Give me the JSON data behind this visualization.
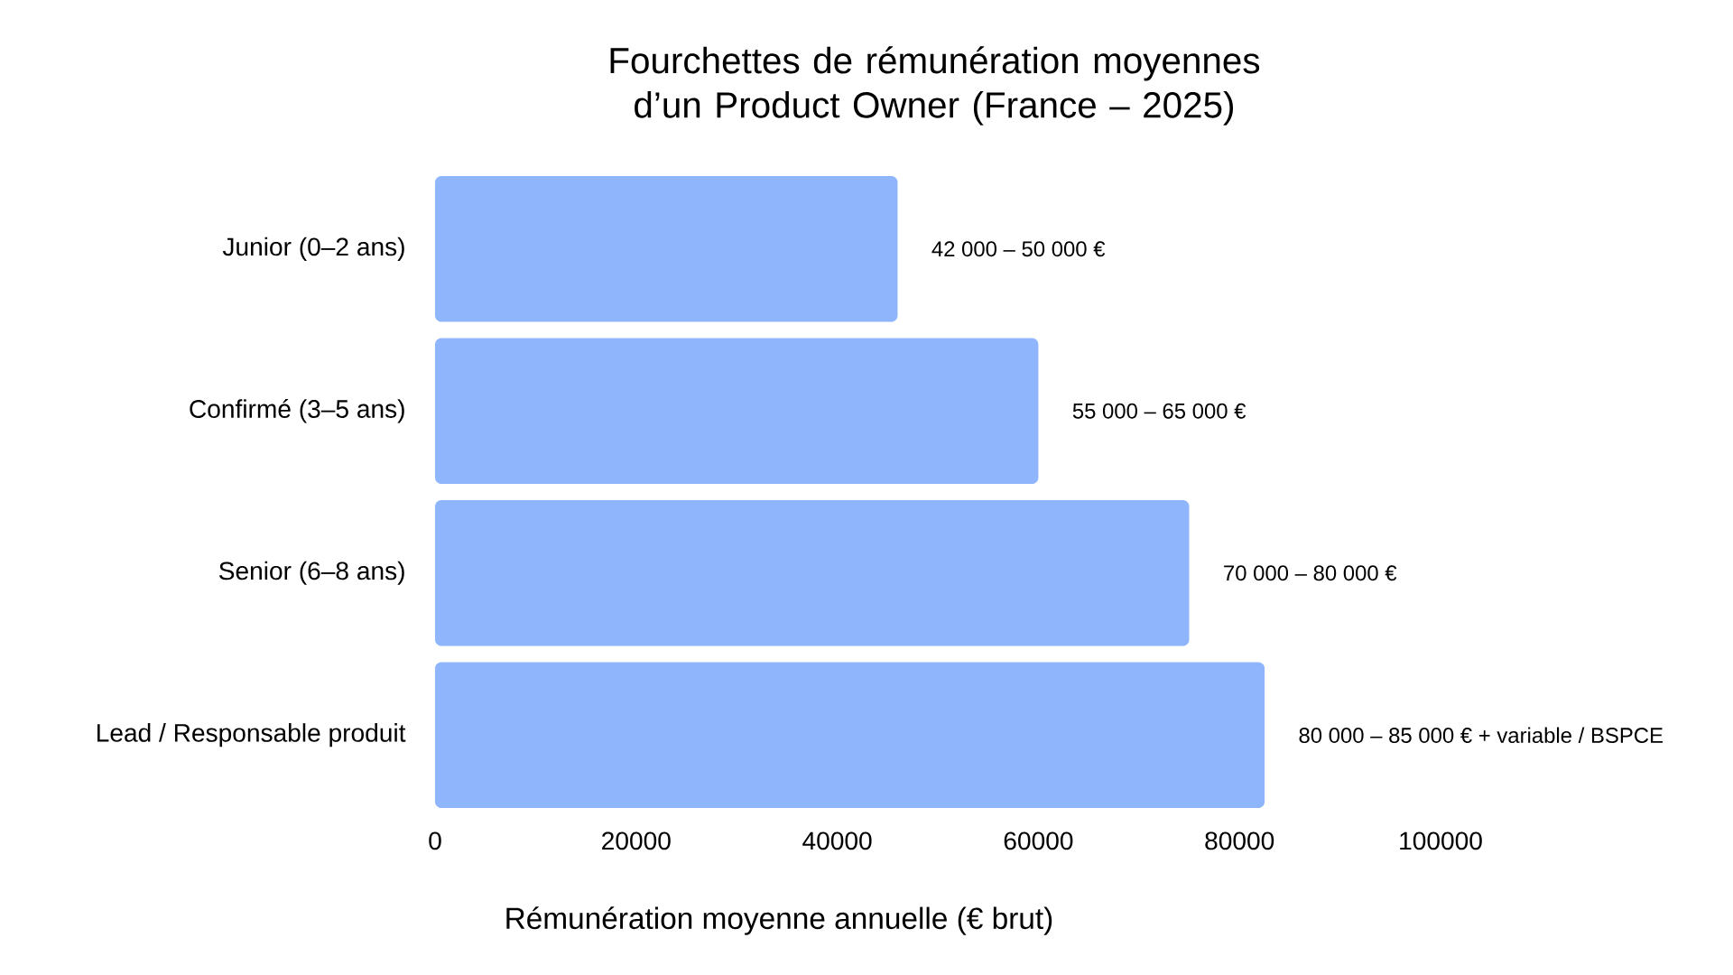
{
  "chart_data": {
    "type": "bar",
    "orientation": "horizontal",
    "title": "Fourchettes de rémunération moyennes d’un Product Owner (France – 2025)",
    "xlabel": "Rémunération moyenne annuelle (€ brut)",
    "categories": [
      "Junior (0–2 ans)",
      "Confirmé (3–5 ans)",
      "Senior (6–8 ans)",
      "Lead / Responsable produit"
    ],
    "values": [
      46000,
      60000,
      75000,
      82500
    ],
    "annotations": [
      {
        "text": "42 000 – 50 000 €",
        "x": 46000,
        "y": "Junior (0–2 ans)"
      },
      {
        "text": "55 000 – 65 000 €",
        "x": 60000,
        "y": "Confirmé (3–5 ans)"
      },
      {
        "text": "70 000 – 80 000 €",
        "x": 75000,
        "y": "Senior (6–8 ans)"
      },
      {
        "text": "80 000 – 85 000 € + variable / BSPCE",
        "x": 82500,
        "y": "Lead / Responsable produit"
      }
    ],
    "color": "#8fb6fd",
    "xlim": [
      0,
      100000
    ],
    "xticks": [
      0,
      20000,
      40000,
      60000,
      80000,
      100000
    ],
    "grid": false
  }
}
